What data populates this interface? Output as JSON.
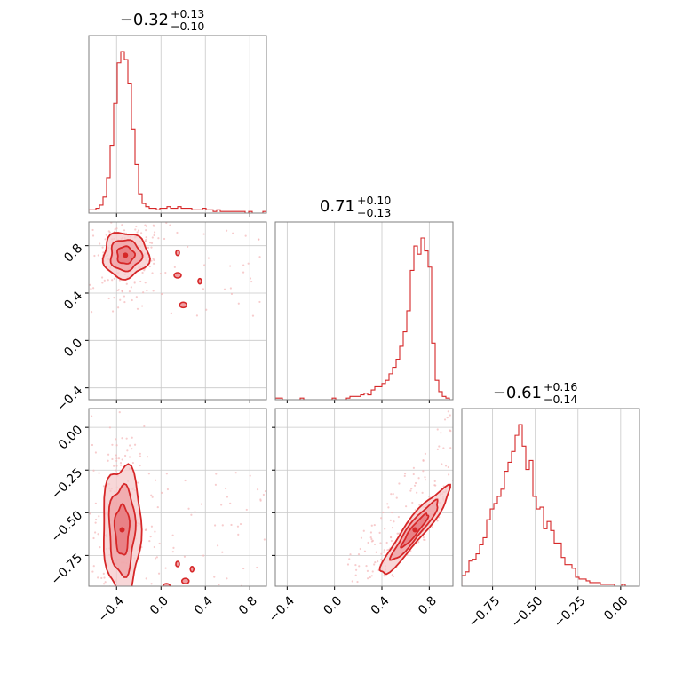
{
  "chart_data": {
    "type": "corner",
    "color": "#d62728",
    "fill_color": "#f2a7aa",
    "grid": true,
    "parameters": [
      {
        "index": 0,
        "range": [
          -0.65,
          0.95
        ],
        "ticks": [
          -0.4,
          0.0,
          0.4,
          0.8
        ],
        "tick_labels": [
          "−0.4",
          "0.0",
          "0.4",
          "0.8"
        ],
        "title": {
          "value": "−0.32",
          "plus": "+0.13",
          "minus": "−0.10"
        }
      },
      {
        "index": 1,
        "range": [
          -0.5,
          1.0
        ],
        "ticks": [
          -0.4,
          0.0,
          0.4,
          0.8
        ],
        "tick_labels": [
          "−0.4",
          "0.0",
          "0.4",
          "0.8"
        ],
        "title": {
          "value": "0.71",
          "plus": "+0.10",
          "minus": "−0.13"
        }
      },
      {
        "index": 2,
        "range": [
          -0.93,
          0.11
        ],
        "ticks": [
          -0.75,
          -0.5,
          -0.25,
          0.0
        ],
        "tick_labels": [
          "−0.75",
          "−0.50",
          "−0.25",
          "0.00"
        ],
        "title": {
          "value": "−0.61",
          "plus": "+0.16",
          "minus": "−0.14"
        }
      }
    ],
    "histograms": [
      {
        "param": 0,
        "edges_start": -0.65,
        "bin_width": 0.032,
        "counts": [
          0.02,
          0.02,
          0.03,
          0.05,
          0.1,
          0.22,
          0.42,
          0.68,
          0.93,
          1.0,
          0.95,
          0.8,
          0.52,
          0.3,
          0.12,
          0.06,
          0.04,
          0.03,
          0.03,
          0.02,
          0.03,
          0.03,
          0.04,
          0.03,
          0.03,
          0.04,
          0.03,
          0.03,
          0.03,
          0.02,
          0.02,
          0.02,
          0.03,
          0.02,
          0.02,
          0.01,
          0.02,
          0.01,
          0.01,
          0.01,
          0.01,
          0.01,
          0.01,
          0.01,
          0.0,
          0.01,
          0.0,
          0.0,
          0.0,
          0.01
        ]
      },
      {
        "param": 1,
        "edges_start": -0.5,
        "bin_width": 0.03,
        "counts": [
          0.01,
          0.01,
          0.0,
          0.0,
          0.0,
          0.0,
          0.0,
          0.01,
          0.0,
          0.0,
          0.0,
          0.0,
          0.0,
          0.0,
          0.0,
          0.0,
          0.01,
          0.0,
          0.0,
          0.0,
          0.01,
          0.02,
          0.02,
          0.02,
          0.03,
          0.04,
          0.03,
          0.06,
          0.08,
          0.08,
          0.1,
          0.12,
          0.16,
          0.2,
          0.25,
          0.33,
          0.42,
          0.55,
          0.8,
          0.95,
          0.9,
          1.0,
          0.92,
          0.82,
          0.35,
          0.12,
          0.05,
          0.02,
          0.01,
          0.0
        ]
      },
      {
        "param": 2,
        "edges_start": -0.93,
        "bin_width": 0.0208,
        "counts": [
          0.06,
          0.08,
          0.14,
          0.15,
          0.18,
          0.23,
          0.27,
          0.37,
          0.43,
          0.46,
          0.5,
          0.54,
          0.64,
          0.69,
          0.75,
          0.84,
          0.9,
          0.78,
          0.65,
          0.7,
          0.5,
          0.43,
          0.44,
          0.32,
          0.36,
          0.31,
          0.24,
          0.24,
          0.16,
          0.12,
          0.12,
          0.1,
          0.05,
          0.04,
          0.04,
          0.03,
          0.02,
          0.02,
          0.02,
          0.01,
          0.01,
          0.01,
          0.01,
          0.0,
          0.0,
          0.01,
          0.0,
          0.0,
          0.0,
          0.0
        ]
      }
    ],
    "pairs": [
      {
        "x_param": 0,
        "y_param": 1,
        "main_center": [
          -0.32,
          0.72
        ],
        "main_spread": [
          0.12,
          0.12
        ],
        "main_rotation": 0,
        "secondary_blobs": [
          [
            0.15,
            0.74
          ],
          [
            0.15,
            0.55
          ],
          [
            0.35,
            0.5
          ],
          [
            0.2,
            0.3
          ]
        ]
      },
      {
        "x_param": 0,
        "y_param": 2,
        "main_center": [
          -0.35,
          -0.6
        ],
        "main_spread": [
          0.1,
          0.24
        ],
        "main_rotation": 0,
        "secondary_blobs": [
          [
            0.15,
            -0.8
          ],
          [
            0.22,
            -0.9
          ],
          [
            0.28,
            -0.83
          ],
          [
            0.05,
            -0.93
          ]
        ]
      },
      {
        "x_param": 1,
        "y_param": 2,
        "main_center": [
          0.68,
          -0.6
        ],
        "main_spread": [
          0.3,
          0.05
        ],
        "main_rotation": 58,
        "secondary_blobs": []
      }
    ]
  }
}
